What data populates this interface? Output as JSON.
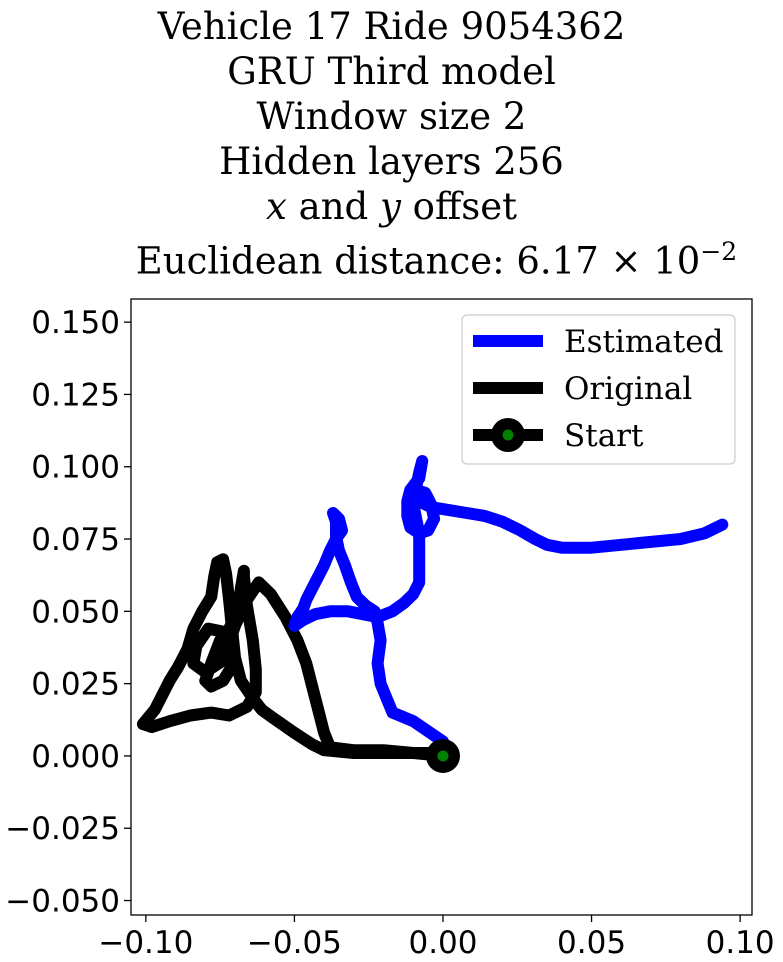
{
  "title": {
    "line1": "Vehicle 17 Ride 9054362",
    "line2": "GRU Third model",
    "line3": "Window size 2",
    "line4": "Hidden layers 256",
    "line5_var_x": "x",
    "line5_and": " and ",
    "line5_var_y": "y",
    "line5_rest": " offset",
    "line6_prefix": "Euclidean distance: 6.17 × 10",
    "line6_exponent": "−2"
  },
  "chart_data": {
    "type": "line",
    "xlim": [
      -0.105,
      0.104
    ],
    "ylim": [
      -0.055,
      0.158
    ],
    "x_ticks": [
      -0.1,
      -0.05,
      0.0,
      0.05,
      0.1
    ],
    "x_tick_labels": [
      "−0.10",
      "−0.05",
      "0.00",
      "0.05",
      "0.10"
    ],
    "y_ticks": [
      0.15,
      0.125,
      0.1,
      0.075,
      0.05,
      0.025,
      0.0,
      -0.025,
      -0.05
    ],
    "y_tick_labels": [
      "0.150",
      "0.125",
      "0.100",
      "0.075",
      "0.050",
      "0.025",
      "0.000",
      "−0.025",
      "−0.050"
    ],
    "grid": false,
    "legend_position": "top-right",
    "series": [
      {
        "name": "Estimated",
        "color": "#0000ff",
        "points": [
          [
            0.0,
            0.005
          ],
          [
            -0.01,
            0.012
          ],
          [
            -0.017,
            0.015
          ],
          [
            -0.019,
            0.02
          ],
          [
            -0.021,
            0.025
          ],
          [
            -0.022,
            0.032
          ],
          [
            -0.021,
            0.04
          ],
          [
            -0.022,
            0.046
          ],
          [
            -0.023,
            0.05
          ],
          [
            -0.026,
            0.052
          ],
          [
            -0.029,
            0.055
          ],
          [
            -0.031,
            0.06
          ],
          [
            -0.033,
            0.066
          ],
          [
            -0.035,
            0.071
          ],
          [
            -0.036,
            0.076
          ],
          [
            -0.036,
            0.081
          ],
          [
            -0.037,
            0.084
          ],
          [
            -0.035,
            0.082
          ],
          [
            -0.034,
            0.078
          ],
          [
            -0.036,
            0.075
          ],
          [
            -0.038,
            0.071
          ],
          [
            -0.04,
            0.066
          ],
          [
            -0.042,
            0.062
          ],
          [
            -0.044,
            0.058
          ],
          [
            -0.046,
            0.054
          ],
          [
            -0.047,
            0.051
          ],
          [
            -0.049,
            0.048
          ],
          [
            -0.05,
            0.045
          ],
          [
            -0.047,
            0.047
          ],
          [
            -0.043,
            0.049
          ],
          [
            -0.038,
            0.05
          ],
          [
            -0.032,
            0.05
          ],
          [
            -0.027,
            0.049
          ],
          [
            -0.022,
            0.048
          ],
          [
            -0.017,
            0.05
          ],
          [
            -0.013,
            0.053
          ],
          [
            -0.01,
            0.056
          ],
          [
            -0.008,
            0.06
          ],
          [
            -0.008,
            0.066
          ],
          [
            -0.008,
            0.072
          ],
          [
            -0.008,
            0.077
          ],
          [
            -0.009,
            0.082
          ],
          [
            -0.01,
            0.087
          ],
          [
            -0.009,
            0.093
          ],
          [
            -0.008,
            0.098
          ],
          [
            -0.007,
            0.102
          ],
          [
            -0.008,
            0.096
          ],
          [
            -0.011,
            0.092
          ],
          [
            -0.012,
            0.088
          ],
          [
            -0.012,
            0.083
          ],
          [
            -0.011,
            0.079
          ],
          [
            -0.008,
            0.077
          ],
          [
            -0.005,
            0.078
          ],
          [
            -0.003,
            0.082
          ],
          [
            -0.004,
            0.087
          ],
          [
            -0.006,
            0.091
          ],
          [
            -0.009,
            0.092
          ],
          [
            -0.008,
            0.088
          ],
          [
            -0.004,
            0.086
          ],
          [
            0.002,
            0.085
          ],
          [
            0.008,
            0.084
          ],
          [
            0.014,
            0.083
          ],
          [
            0.02,
            0.081
          ],
          [
            0.026,
            0.078
          ],
          [
            0.031,
            0.075
          ],
          [
            0.035,
            0.073
          ],
          [
            0.04,
            0.072
          ],
          [
            0.05,
            0.072
          ],
          [
            0.06,
            0.073
          ],
          [
            0.07,
            0.074
          ],
          [
            0.08,
            0.075
          ],
          [
            0.088,
            0.077
          ],
          [
            0.094,
            0.08
          ]
        ]
      },
      {
        "name": "Original",
        "color": "#000000",
        "points": [
          [
            0.0,
            0.001
          ],
          [
            -0.01,
            0.001
          ],
          [
            -0.02,
            0.001
          ],
          [
            -0.03,
            0.001
          ],
          [
            -0.04,
            0.002
          ],
          [
            -0.044,
            0.004
          ],
          [
            -0.05,
            0.008
          ],
          [
            -0.057,
            0.013
          ],
          [
            -0.061,
            0.016
          ],
          [
            -0.064,
            0.02
          ],
          [
            -0.068,
            0.026
          ],
          [
            -0.07,
            0.034
          ],
          [
            -0.071,
            0.044
          ],
          [
            -0.072,
            0.054
          ],
          [
            -0.073,
            0.063
          ],
          [
            -0.074,
            0.068
          ],
          [
            -0.076,
            0.067
          ],
          [
            -0.077,
            0.062
          ],
          [
            -0.078,
            0.055
          ],
          [
            -0.081,
            0.05
          ],
          [
            -0.084,
            0.044
          ],
          [
            -0.086,
            0.037
          ],
          [
            -0.089,
            0.031
          ],
          [
            -0.092,
            0.026
          ],
          [
            -0.094,
            0.022
          ],
          [
            -0.097,
            0.016
          ],
          [
            -0.101,
            0.011
          ],
          [
            -0.098,
            0.01
          ],
          [
            -0.092,
            0.012
          ],
          [
            -0.085,
            0.014
          ],
          [
            -0.078,
            0.015
          ],
          [
            -0.072,
            0.014
          ],
          [
            -0.066,
            0.017
          ],
          [
            -0.063,
            0.022
          ],
          [
            -0.063,
            0.03
          ],
          [
            -0.064,
            0.04
          ],
          [
            -0.066,
            0.052
          ],
          [
            -0.067,
            0.062
          ],
          [
            -0.067,
            0.064
          ],
          [
            -0.068,
            0.058
          ],
          [
            -0.069,
            0.05
          ],
          [
            -0.072,
            0.044
          ],
          [
            -0.075,
            0.04
          ],
          [
            -0.078,
            0.032
          ],
          [
            -0.08,
            0.026
          ],
          [
            -0.078,
            0.024
          ],
          [
            -0.074,
            0.026
          ],
          [
            -0.071,
            0.031
          ],
          [
            -0.071,
            0.038
          ],
          [
            -0.074,
            0.043
          ],
          [
            -0.079,
            0.044
          ],
          [
            -0.083,
            0.038
          ],
          [
            -0.084,
            0.032
          ],
          [
            -0.08,
            0.029
          ],
          [
            -0.074,
            0.033
          ],
          [
            -0.07,
            0.045
          ],
          [
            -0.066,
            0.054
          ],
          [
            -0.062,
            0.06
          ],
          [
            -0.058,
            0.056
          ],
          [
            -0.053,
            0.048
          ],
          [
            -0.049,
            0.04
          ],
          [
            -0.046,
            0.032
          ],
          [
            -0.044,
            0.024
          ],
          [
            -0.042,
            0.016
          ],
          [
            -0.04,
            0.008
          ],
          [
            -0.038,
            0.003
          ],
          [
            -0.03,
            0.002
          ],
          [
            -0.02,
            0.002
          ],
          [
            -0.01,
            0.001
          ],
          [
            0.0,
            0.0
          ]
        ]
      }
    ],
    "start": {
      "name": "Start",
      "x": 0.0,
      "y": 0.0,
      "outer_color": "#000000",
      "inner_color": "#008000"
    }
  }
}
